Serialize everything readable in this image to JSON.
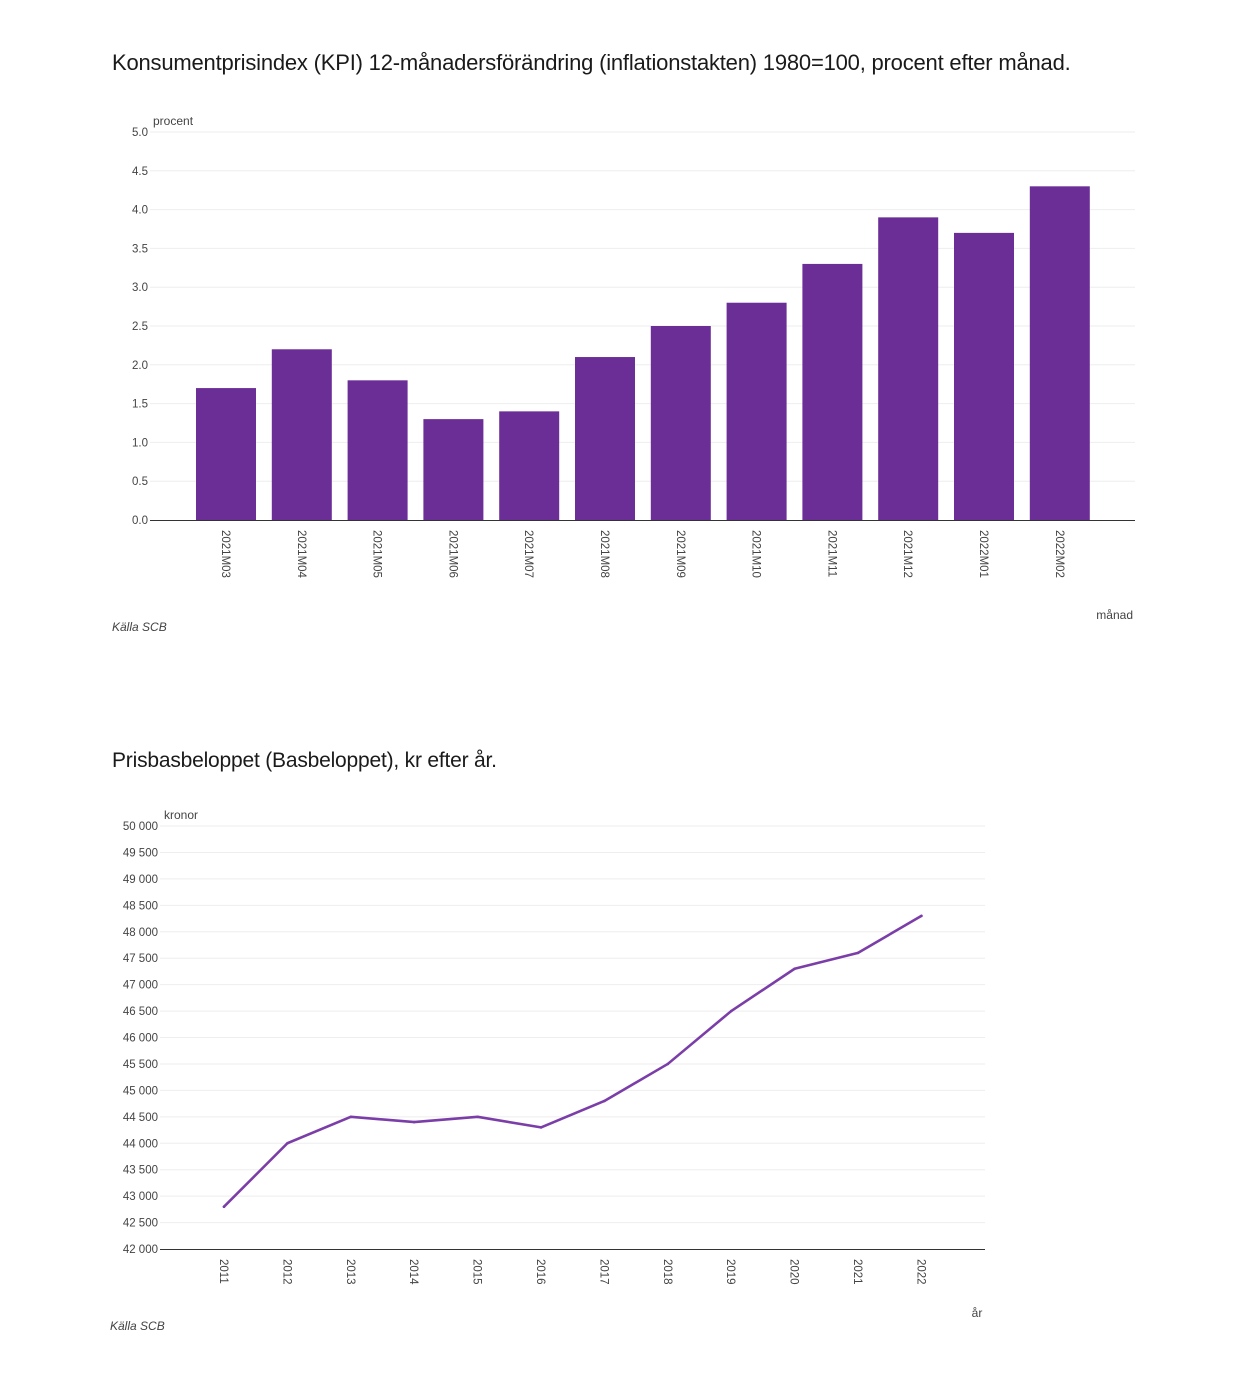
{
  "chart_data": [
    {
      "type": "bar",
      "title": "Konsumentprisindex (KPI) 12-månadersförändring (inflationstakten) 1980=100, procent efter månad.",
      "ylabel": "procent",
      "xlabel": "månad",
      "source": "Källa  SCB",
      "ylim": [
        0,
        5
      ],
      "yticks": [
        0.0,
        0.5,
        1.0,
        1.5,
        2.0,
        2.5,
        3.0,
        3.5,
        4.0,
        4.5,
        5.0
      ],
      "ytick_labels": [
        "0.0",
        "0.5",
        "1.0",
        "1.5",
        "2.0",
        "2.5",
        "3.0",
        "3.5",
        "4.0",
        "4.5",
        "5.0"
      ],
      "categories": [
        "2021M03",
        "2021M04",
        "2021M05",
        "2021M06",
        "2021M07",
        "2021M08",
        "2021M09",
        "2021M10",
        "2021M11",
        "2021M12",
        "2022M01",
        "2022M02"
      ],
      "values": [
        1.7,
        2.2,
        1.8,
        1.3,
        1.4,
        2.1,
        2.5,
        2.8,
        3.3,
        3.9,
        3.7,
        4.3
      ],
      "color": "#6b2d96",
      "grid": true
    },
    {
      "type": "line",
      "title": "Prisbasbeloppet (Basbeloppet), kr efter år.",
      "ylabel": "kronor",
      "xlabel": "år",
      "source": "Källa  SCB",
      "ylim": [
        42000,
        50000
      ],
      "yticks": [
        42000,
        42500,
        43000,
        43500,
        44000,
        44500,
        45000,
        45500,
        46000,
        46500,
        47000,
        47500,
        48000,
        48500,
        49000,
        49500,
        50000
      ],
      "ytick_labels": [
        "42 000",
        "42 500",
        "43 000",
        "43 500",
        "44 000",
        "44 500",
        "45 000",
        "45 500",
        "46 000",
        "46 500",
        "47 000",
        "47 500",
        "48 000",
        "48 500",
        "49 000",
        "49 500",
        "50 000"
      ],
      "categories": [
        "2011",
        "2012",
        "2013",
        "2014",
        "2015",
        "2016",
        "2017",
        "2018",
        "2019",
        "2020",
        "2021",
        "2022"
      ],
      "values": [
        42800,
        44000,
        44500,
        44400,
        44500,
        44300,
        44800,
        45500,
        46500,
        47300,
        47600,
        48300
      ],
      "color": "#7b3ea8",
      "grid": true
    }
  ]
}
